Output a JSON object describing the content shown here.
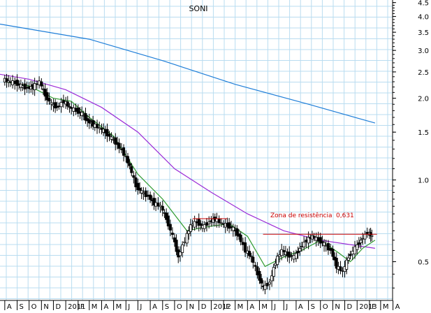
{
  "chart_data": {
    "type": "candlestick",
    "title": "SONI",
    "y_scale": "log",
    "ylim": [
      0.36,
      4.6
    ],
    "y_ticks": [
      0.5,
      1.0,
      1.5,
      2.0,
      2.5,
      3.0,
      3.5,
      4.0,
      4.5
    ],
    "y_tick_labels": [
      "0.5",
      "1.0",
      "1.5",
      "2.0",
      "2.5",
      "3.0",
      "3.5",
      "4.0",
      "4.5"
    ],
    "x_month_labels": [
      "A",
      "S",
      "O",
      "N",
      "D",
      "2011",
      "F",
      "M",
      "A",
      "M",
      "J",
      "J",
      "A",
      "S",
      "O",
      "N",
      "D",
      "2012",
      "F",
      "M",
      "A",
      "M",
      "J",
      "J",
      "A",
      "S",
      "O",
      "N",
      "D",
      "2013",
      "F",
      "M",
      "A"
    ],
    "price_points": [
      [
        "2010-08-01",
        2.35
      ],
      [
        "2010-08-15",
        2.3
      ],
      [
        "2010-09-01",
        2.28
      ],
      [
        "2010-09-15",
        2.22
      ],
      [
        "2010-10-01",
        2.18
      ],
      [
        "2010-10-15",
        2.2
      ],
      [
        "2010-11-01",
        2.3
      ],
      [
        "2010-11-15",
        2.05
      ],
      [
        "2010-12-01",
        1.9
      ],
      [
        "2010-12-15",
        1.85
      ],
      [
        "2011-01-01",
        1.95
      ],
      [
        "2011-01-15",
        1.85
      ],
      [
        "2011-02-01",
        1.8
      ],
      [
        "2011-02-15",
        1.75
      ],
      [
        "2011-03-01",
        1.65
      ],
      [
        "2011-03-15",
        1.6
      ],
      [
        "2011-04-01",
        1.55
      ],
      [
        "2011-04-15",
        1.5
      ],
      [
        "2011-05-01",
        1.42
      ],
      [
        "2011-05-15",
        1.35
      ],
      [
        "2011-06-01",
        1.25
      ],
      [
        "2011-06-15",
        1.12
      ],
      [
        "2011-07-01",
        0.95
      ],
      [
        "2011-07-15",
        0.9
      ],
      [
        "2011-08-01",
        0.87
      ],
      [
        "2011-08-15",
        0.82
      ],
      [
        "2011-09-01",
        0.8
      ],
      [
        "2011-09-15",
        0.72
      ],
      [
        "2011-10-01",
        0.62
      ],
      [
        "2011-10-15",
        0.52
      ],
      [
        "2011-11-01",
        0.6
      ],
      [
        "2011-11-15",
        0.68
      ],
      [
        "2011-12-01",
        0.7
      ],
      [
        "2011-12-15",
        0.67
      ],
      [
        "2012-01-01",
        0.7
      ],
      [
        "2012-01-15",
        0.72
      ],
      [
        "2012-02-01",
        0.69
      ],
      [
        "2012-02-15",
        0.68
      ],
      [
        "2012-03-01",
        0.66
      ],
      [
        "2012-03-15",
        0.62
      ],
      [
        "2012-04-01",
        0.55
      ],
      [
        "2012-04-15",
        0.52
      ],
      [
        "2012-05-01",
        0.45
      ],
      [
        "2012-05-15",
        0.4
      ],
      [
        "2012-06-01",
        0.42
      ],
      [
        "2012-06-15",
        0.5
      ],
      [
        "2012-07-01",
        0.55
      ],
      [
        "2012-07-15",
        0.53
      ],
      [
        "2012-08-01",
        0.52
      ],
      [
        "2012-08-15",
        0.56
      ],
      [
        "2012-09-01",
        0.6
      ],
      [
        "2012-09-15",
        0.62
      ],
      [
        "2012-10-01",
        0.6
      ],
      [
        "2012-10-15",
        0.58
      ],
      [
        "2012-11-01",
        0.55
      ],
      [
        "2012-11-15",
        0.48
      ],
      [
        "2012-12-01",
        0.46
      ],
      [
        "2012-12-15",
        0.52
      ],
      [
        "2013-01-01",
        0.56
      ],
      [
        "2013-01-15",
        0.6
      ],
      [
        "2013-02-01",
        0.64
      ],
      [
        "2013-02-10",
        0.62
      ]
    ],
    "moving_averages": [
      {
        "color": "#1f7ed8",
        "points": [
          [
            "2010-07-20",
            3.75
          ],
          [
            "2011-03-01",
            3.3
          ],
          [
            "2011-09-01",
            2.75
          ],
          [
            "2012-03-01",
            2.25
          ],
          [
            "2012-09-01",
            1.9
          ],
          [
            "2013-02-15",
            1.62
          ]
        ]
      },
      {
        "color": "#9b2bd6",
        "points": [
          [
            "2010-07-20",
            2.45
          ],
          [
            "2010-10-01",
            2.35
          ],
          [
            "2011-01-01",
            2.15
          ],
          [
            "2011-04-01",
            1.85
          ],
          [
            "2011-07-01",
            1.5
          ],
          [
            "2011-10-01",
            1.1
          ],
          [
            "2012-01-01",
            0.9
          ],
          [
            "2012-04-01",
            0.75
          ],
          [
            "2012-07-01",
            0.65
          ],
          [
            "2012-10-01",
            0.6
          ],
          [
            "2013-02-15",
            0.56
          ]
        ]
      },
      {
        "color": "#2e9a2e",
        "points": [
          [
            "2010-08-01",
            2.3
          ],
          [
            "2010-10-01",
            2.22
          ],
          [
            "2010-12-01",
            2.0
          ],
          [
            "2011-01-15",
            1.95
          ],
          [
            "2011-03-01",
            1.7
          ],
          [
            "2011-05-01",
            1.45
          ],
          [
            "2011-07-01",
            1.05
          ],
          [
            "2011-09-01",
            0.85
          ],
          [
            "2011-11-01",
            0.65
          ],
          [
            "2011-12-15",
            0.67
          ],
          [
            "2012-02-15",
            0.69
          ],
          [
            "2012-04-01",
            0.62
          ],
          [
            "2012-05-15",
            0.48
          ],
          [
            "2012-07-01",
            0.52
          ],
          [
            "2012-08-15",
            0.55
          ],
          [
            "2012-10-01",
            0.6
          ],
          [
            "2012-11-15",
            0.54
          ],
          [
            "2012-12-15",
            0.5
          ],
          [
            "2013-01-15",
            0.56
          ],
          [
            "2013-02-15",
            0.6
          ]
        ]
      }
    ],
    "annotations": [
      {
        "text": "Zona de resistência",
        "color": "#cc0000"
      },
      {
        "text": "0,631",
        "color": "#cc0000"
      }
    ],
    "resistance_lines": [
      {
        "x_start": "2011-11-15",
        "x_end": "2012-02-10",
        "y": 0.72
      },
      {
        "x_start": "2012-05-10",
        "x_end": "2013-02-20",
        "y": 0.631
      }
    ],
    "grid": true
  }
}
